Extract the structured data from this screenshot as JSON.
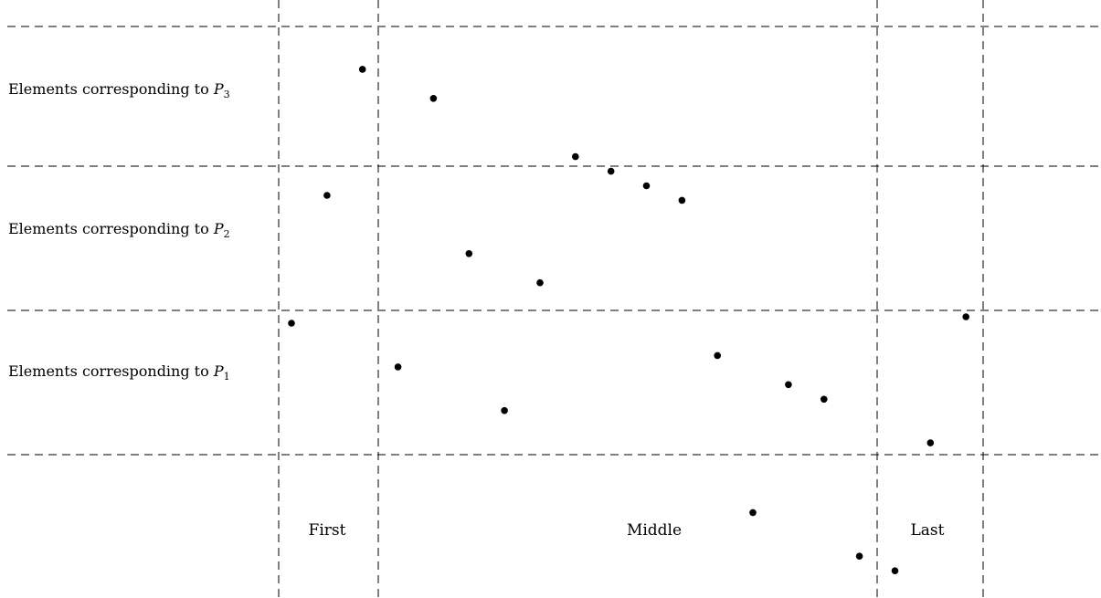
{
  "rows": [
    {
      "id": "p3",
      "text": "Elements corresponding to",
      "symbol": "P",
      "subscript": "3"
    },
    {
      "id": "p2",
      "text": "Elements corresponding to",
      "symbol": "P",
      "subscript": "2"
    },
    {
      "id": "p1",
      "text": "Elements corresponding to",
      "symbol": "P",
      "subscript": "1"
    }
  ],
  "columns": {
    "first": "First",
    "middle": "Middle",
    "last": "Last"
  },
  "points": [
    {
      "index": 1,
      "row": "p1"
    },
    {
      "index": 2,
      "row": "p2"
    },
    {
      "index": 3,
      "row": "p3"
    },
    {
      "index": 4,
      "row": "p1"
    },
    {
      "index": 5,
      "row": "p3"
    },
    {
      "index": 6,
      "row": "p2"
    },
    {
      "index": 7,
      "row": "p1"
    },
    {
      "index": 8,
      "row": "p2"
    },
    {
      "index": 9,
      "row": "p3"
    },
    {
      "index": 10,
      "row": "p3"
    },
    {
      "index": 11,
      "row": "p3"
    },
    {
      "index": 12,
      "row": "p3"
    },
    {
      "index": 13,
      "row": "p2"
    },
    {
      "index": 14,
      "row": "p1"
    },
    {
      "index": 15,
      "row": "p2"
    },
    {
      "index": 16,
      "row": "p2"
    },
    {
      "index": 17,
      "row": "p1"
    },
    {
      "index": 18,
      "row": "p1"
    },
    {
      "index": 19,
      "row": "p2"
    },
    {
      "index": 20,
      "row": "p3"
    }
  ]
}
